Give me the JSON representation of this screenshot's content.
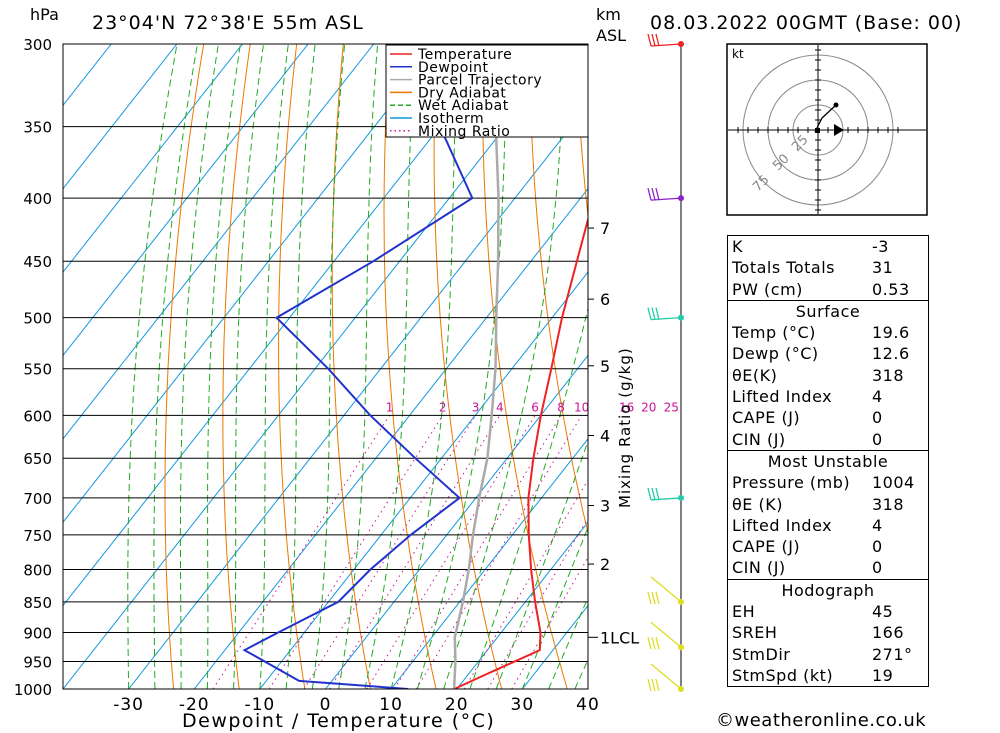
{
  "header": {
    "hpa_label": "hPa",
    "location": "23°04'N 72°38'E 55m ASL",
    "km_label": "km",
    "asl_label": "ASL",
    "datetime": "08.03.2022 00GMT (Base: 00)"
  },
  "axis": {
    "xlabel": "Dewpoint / Temperature (°C)",
    "mixing_ratio_label": "Mixing Ratio (g/kg)",
    "lcl_label": "1LCL"
  },
  "legend": [
    {
      "name": "Temperature",
      "color": "#ee2222",
      "style": "solid"
    },
    {
      "name": "Dewpoint",
      "color": "#2233cc",
      "style": "solid"
    },
    {
      "name": "Parcel Trajectory",
      "color": "#aaaaaa",
      "style": "solid"
    },
    {
      "name": "Dry Adiabat",
      "color": "#ee7700",
      "style": "solid"
    },
    {
      "name": "Wet Adiabat",
      "color": "#22aa22",
      "style": "dashed"
    },
    {
      "name": "Isotherm",
      "color": "#1199dd",
      "style": "solid"
    },
    {
      "name": "Mixing Ratio",
      "color": "#cc1199",
      "style": "dotted"
    }
  ],
  "chart_data": {
    "type": "line",
    "xlabel": "Dewpoint / Temperature (°C)",
    "ylabel": "hPa",
    "pressure_levels": [
      300,
      350,
      400,
      450,
      500,
      550,
      600,
      650,
      700,
      750,
      800,
      850,
      900,
      950,
      1000
    ],
    "x_ticks": [
      -30,
      -20,
      -10,
      0,
      10,
      20,
      30,
      40
    ],
    "km_ticks": [
      {
        "label": "7",
        "p": 423
      },
      {
        "label": "6",
        "p": 483
      },
      {
        "label": "5",
        "p": 547
      },
      {
        "label": "4",
        "p": 623
      },
      {
        "label": "3",
        "p": 710
      },
      {
        "label": "2",
        "p": 792
      }
    ],
    "lcl_pressure": 908,
    "mixing_ratio_labels": [
      "1",
      "2",
      "3",
      "4",
      "6",
      "8",
      "10",
      "16",
      "20",
      "25"
    ],
    "mixing_ratio_values": [
      1,
      2,
      3,
      4,
      6,
      8,
      10,
      16,
      20,
      25
    ],
    "series": [
      {
        "name": "Temperature",
        "color": "#ee2222",
        "points": [
          [
            1000,
            19.6
          ],
          [
            975,
            22.5
          ],
          [
            930,
            28.0
          ],
          [
            900,
            26.0
          ],
          [
            850,
            21.5
          ],
          [
            800,
            17.0
          ],
          [
            750,
            12.5
          ],
          [
            700,
            8.0
          ],
          [
            650,
            4.0
          ],
          [
            600,
            0.0
          ],
          [
            550,
            -4.0
          ],
          [
            500,
            -8.5
          ],
          [
            450,
            -13.0
          ],
          [
            400,
            -18.0
          ],
          [
            350,
            -25.0
          ],
          [
            300,
            -33.0
          ]
        ]
      },
      {
        "name": "Dewpoint",
        "color": "#2233cc",
        "points": [
          [
            1000,
            12.6
          ],
          [
            985,
            -5.0
          ],
          [
            930,
            -17.0
          ],
          [
            900,
            -14.0
          ],
          [
            850,
            -8.5
          ],
          [
            800,
            -7.5
          ],
          [
            750,
            -5.5
          ],
          [
            700,
            -2.5
          ],
          [
            650,
            -14.0
          ],
          [
            600,
            -26.0
          ],
          [
            550,
            -38.0
          ],
          [
            500,
            -52.0
          ],
          [
            450,
            -44.0
          ],
          [
            400,
            -36.5
          ],
          [
            350,
            -50.0
          ],
          [
            300,
            -65.0
          ]
        ]
      },
      {
        "name": "Parcel Trajectory",
        "color": "#aaaaaa",
        "points": [
          [
            1000,
            19.6
          ],
          [
            950,
            16.5
          ],
          [
            908,
            13.5
          ],
          [
            850,
            10.5
          ],
          [
            800,
            7.5
          ],
          [
            750,
            4.0
          ],
          [
            700,
            0.5
          ],
          [
            650,
            -3.0
          ],
          [
            600,
            -7.5
          ],
          [
            550,
            -12.5
          ],
          [
            500,
            -18.5
          ],
          [
            450,
            -25.0
          ],
          [
            400,
            -32.5
          ],
          [
            350,
            -41.5
          ],
          [
            300,
            -51.0
          ]
        ]
      }
    ],
    "wind_barbs": [
      {
        "p": 300,
        "color": "#ee2222"
      },
      {
        "p": 400,
        "color": "#8822cc"
      },
      {
        "p": 500,
        "color": "#22ccaa"
      },
      {
        "p": 700,
        "color": "#22ccaa"
      },
      {
        "p": 850,
        "color": "#dddd22"
      },
      {
        "p": 925,
        "color": "#dddd22"
      },
      {
        "p": 1000,
        "color": "#dddd22"
      }
    ]
  },
  "hodograph": {
    "unit_label": "kt",
    "ring_labels": [
      "25",
      "50",
      "75"
    ]
  },
  "indices": {
    "rows": [
      {
        "label": "K",
        "value": "-3"
      },
      {
        "label": "Totals Totals",
        "value": "31"
      },
      {
        "label": "PW (cm)",
        "value": "0.53"
      }
    ]
  },
  "surface": {
    "title": "Surface",
    "rows": [
      {
        "label": "Temp (°C)",
        "value": "19.6"
      },
      {
        "label": "Dewp (°C)",
        "value": "12.6"
      },
      {
        "label": "θE(K)",
        "value": "318"
      },
      {
        "label": "Lifted Index",
        "value": "4"
      },
      {
        "label": "CAPE (J)",
        "value": "0"
      },
      {
        "label": "CIN (J)",
        "value": "0"
      }
    ]
  },
  "most_unstable": {
    "title": "Most Unstable",
    "rows": [
      {
        "label": "Pressure (mb)",
        "value": "1004"
      },
      {
        "label": "θE (K)",
        "value": "318"
      },
      {
        "label": "Lifted Index",
        "value": "4"
      },
      {
        "label": "CAPE (J)",
        "value": "0"
      },
      {
        "label": "CIN (J)",
        "value": "0"
      }
    ]
  },
  "hodograph_table": {
    "title": "Hodograph",
    "rows": [
      {
        "label": "EH",
        "value": "45"
      },
      {
        "label": "SREH",
        "value": "166"
      },
      {
        "label": "StmDir",
        "value": "271°"
      },
      {
        "label": "StmSpd (kt)",
        "value": "19"
      }
    ]
  },
  "footer": {
    "copyright": "©weatheronline.co.uk"
  }
}
